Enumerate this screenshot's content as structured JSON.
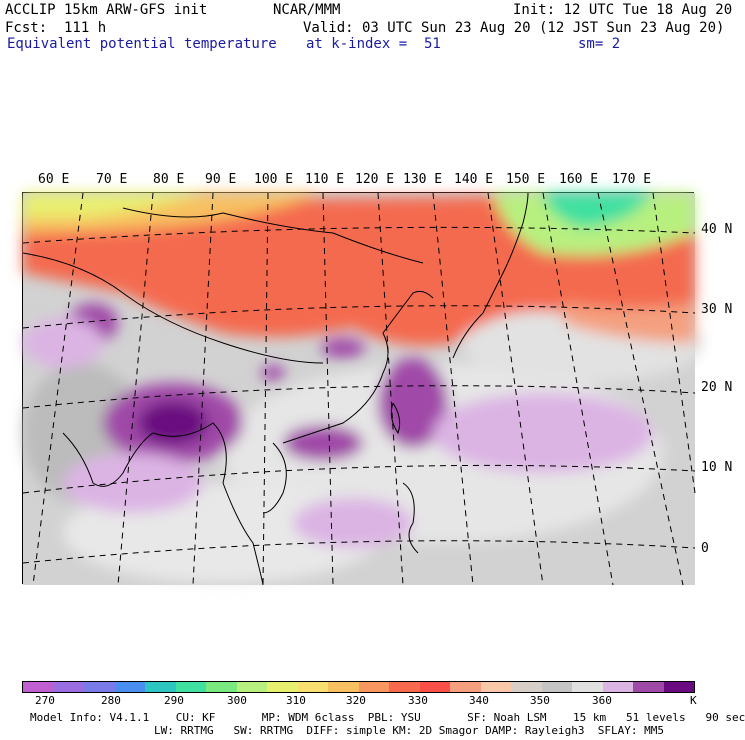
{
  "header": {
    "line1_left": "ACCLIP 15km ARW-GFS init",
    "line1_mid": "NCAR/MMM",
    "line1_right": "Init: 12 UTC Tue 18 Aug 20",
    "line2_left": "Fcst:  111 h",
    "line2_right": "Valid: 03 UTC Sun 23 Aug 20 (12 JST Sun 23 Aug 20)",
    "line3_left": "Equivalent potential temperature",
    "line3_mid": "at k-index =  51",
    "line3_right": "sm= 2"
  },
  "map": {
    "lon_labels": [
      "60 E",
      "70 E",
      "80 E",
      "90 E",
      "100 E",
      "110 E",
      "120 E",
      "130 E",
      "140 E",
      "150 E",
      "160 E",
      "170 E"
    ],
    "lat_labels": [
      "40 N",
      "30 N",
      "20 N",
      "10 N",
      "0"
    ]
  },
  "colorbar": {
    "colors": [
      "#c060d0",
      "#9a6ee0",
      "#7a7ae8",
      "#4a8ef0",
      "#2ec6c0",
      "#40e0a0",
      "#7aea80",
      "#b8f080",
      "#e8f070",
      "#f8e070",
      "#f8c060",
      "#f89860",
      "#f86a50",
      "#f85048",
      "#f4a080",
      "#f8c8a8",
      "#d8cec8",
      "#c4c4c4",
      "#e0e0e0",
      "#dcb4e4",
      "#a04aa8",
      "#6a0a80"
    ],
    "labels": [
      "270",
      "280",
      "290",
      "300",
      "310",
      "320",
      "330",
      "340",
      "350",
      "360"
    ],
    "unit": "K"
  },
  "footer": {
    "line1": "Model Info: V4.1.1    CU: KF       MP: WDM 6class  PBL: YSU       SF: Noah LSM    15 km   51 levels   90 sec",
    "line2": "LW: RRTMG   SW: RRTMG  DIFF: simple KM: 2D Smagor DAMP: Rayleigh3  SFLAY: MM5"
  }
}
